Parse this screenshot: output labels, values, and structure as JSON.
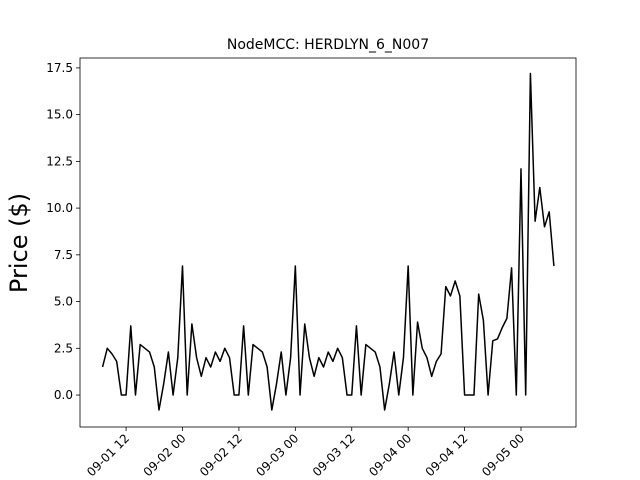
{
  "chart_data": {
    "type": "line",
    "title": "NodeMCC: HERDLYN_6_N007",
    "ylabel": "Price ($)",
    "color": "#000000",
    "grid": false,
    "x": [
      7,
      8,
      9,
      10,
      11,
      12,
      13,
      14,
      15,
      16,
      17,
      18,
      19,
      20,
      21,
      22,
      23,
      24,
      25,
      26,
      27,
      28,
      29,
      30,
      31,
      32,
      33,
      34,
      35,
      36,
      37,
      38,
      39,
      40,
      41,
      42,
      43,
      44,
      45,
      46,
      47,
      48,
      49,
      50,
      51,
      52,
      53,
      54,
      55,
      56,
      57,
      58,
      59,
      60,
      61,
      62,
      63,
      64,
      65,
      66,
      67,
      68,
      69,
      70,
      71,
      72,
      73,
      74,
      75,
      76,
      77,
      78,
      79,
      80,
      81,
      82,
      83,
      84,
      85,
      86,
      87,
      88,
      89,
      90,
      91,
      92,
      93,
      94,
      95,
      96,
      97,
      98,
      99,
      100,
      101,
      102,
      103
    ],
    "values": [
      1.5,
      2.5,
      2.2,
      1.8,
      0,
      0,
      3.7,
      0,
      2.7,
      2.5,
      2.3,
      1.5,
      -0.8,
      0.6,
      2.3,
      0,
      2.0,
      6.9,
      0,
      3.8,
      2.0,
      1.0,
      2.0,
      1.5,
      2.3,
      1.8,
      2.5,
      2.0,
      0,
      0,
      3.7,
      0,
      2.7,
      2.5,
      2.3,
      1.5,
      -0.8,
      0.6,
      2.3,
      0,
      2.0,
      6.9,
      0,
      3.8,
      2.0,
      1.0,
      2.0,
      1.5,
      2.3,
      1.8,
      2.5,
      2.0,
      0,
      0,
      3.7,
      0,
      2.7,
      2.5,
      2.3,
      1.5,
      -0.8,
      0.6,
      2.3,
      0,
      2.0,
      6.9,
      0,
      3.9,
      2.5,
      2.0,
      1.0,
      1.8,
      2.2,
      5.8,
      5.3,
      6.1,
      5.3,
      0,
      0,
      0,
      5.4,
      4.0,
      0,
      2.9,
      3.0,
      3.6,
      4.1,
      6.8,
      0,
      12.1,
      0,
      17.2,
      9.3,
      11.1,
      9.0,
      9.8,
      6.9
    ],
    "xlim": [
      2.2,
      107.7
    ],
    "xticks": [
      {
        "value": 12,
        "label": "09-01 12"
      },
      {
        "value": 24,
        "label": "09-02 00"
      },
      {
        "value": 36,
        "label": "09-02 12"
      },
      {
        "value": 48,
        "label": "09-03 00"
      },
      {
        "value": 60,
        "label": "09-03 12"
      },
      {
        "value": 72,
        "label": "09-04 00"
      },
      {
        "value": 84,
        "label": "09-04 12"
      },
      {
        "value": 96,
        "label": "09-05 00"
      }
    ],
    "ylim": [
      -1.71,
      18.03
    ],
    "yticks": [
      {
        "value": 0,
        "label": "0.0"
      },
      {
        "value": 2.5,
        "label": "2.5"
      },
      {
        "value": 5,
        "label": "5.0"
      },
      {
        "value": 7.5,
        "label": "7.5"
      },
      {
        "value": 10,
        "label": "10.0"
      },
      {
        "value": 12.5,
        "label": "12.5"
      },
      {
        "value": 15,
        "label": "15.0"
      },
      {
        "value": 17.5,
        "label": "17.5"
      }
    ]
  }
}
